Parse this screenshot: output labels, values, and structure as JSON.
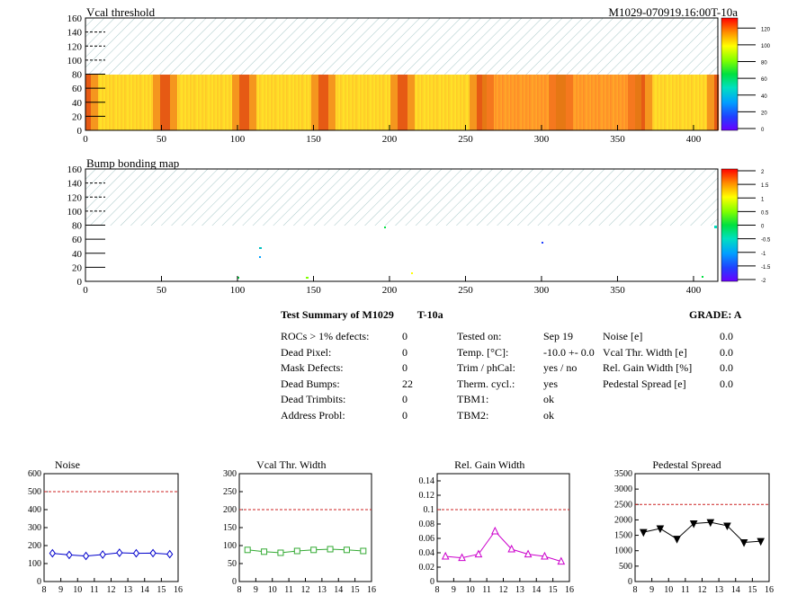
{
  "header": {
    "threshold_title": "Vcal threshold",
    "module_id": "M1029-070919.16:00T-10a",
    "bump_title": "Bump bonding map"
  },
  "maps": {
    "x_ticks": [
      "0",
      "50",
      "100",
      "150",
      "200",
      "250",
      "300",
      "350",
      "400"
    ],
    "y_ticks": [
      "0",
      "20",
      "40",
      "60",
      "80",
      "100",
      "120",
      "140",
      "160"
    ],
    "threshold_palette_ticks": [
      "0",
      "20",
      "40",
      "60",
      "80",
      "100",
      "120"
    ],
    "bump_palette_ticks": [
      "-2",
      "-1.5",
      "-1",
      "-0.5",
      "0",
      "0.5",
      "1",
      "1.5",
      "2"
    ]
  },
  "summary": {
    "title": "Test Summary of M1029",
    "temp_tag": "T-10a",
    "grade_label": "GRADE:",
    "grade": "A",
    "left": [
      {
        "label": "ROCs > 1% defects:",
        "value": "0"
      },
      {
        "label": "Dead Pixel:",
        "value": "0"
      },
      {
        "label": "Mask Defects:",
        "value": "0"
      },
      {
        "label": "Dead Bumps:",
        "value": "22"
      },
      {
        "label": "Dead Trimbits:",
        "value": "0"
      },
      {
        "label": "Address Probl:",
        "value": "0"
      }
    ],
    "middle": [
      {
        "label": "Tested on:",
        "value": "Sep 19"
      },
      {
        "label": "Temp. [°C]:",
        "value": "-10.0 +- 0.0"
      },
      {
        "label": "Trim / phCal:",
        "value": "yes / no"
      },
      {
        "label": "Therm. cycl.:",
        "value": "yes"
      },
      {
        "label": "TBM1:",
        "value": "ok"
      },
      {
        "label": "TBM2:",
        "value": "ok"
      }
    ],
    "right": [
      {
        "label": "Noise [e]",
        "value": "0.0"
      },
      {
        "label": "Vcal Thr. Width [e]",
        "value": "0.0"
      },
      {
        "label": "Rel. Gain Width [%]",
        "value": "0.0"
      },
      {
        "label": "Pedestal Spread [e]",
        "value": "0.0"
      }
    ]
  },
  "chart_data": [
    {
      "type": "line",
      "title": "Noise",
      "x": [
        8.5,
        9.5,
        10.5,
        11.5,
        12.5,
        13.5,
        14.5,
        15.5
      ],
      "values": [
        157,
        148,
        142,
        150,
        160,
        157,
        158,
        152
      ],
      "xlim": [
        8,
        16
      ],
      "ylim": [
        0,
        600
      ],
      "x_ticks": [
        8,
        9,
        10,
        11,
        12,
        13,
        14,
        15,
        16
      ],
      "y_ticks": [
        0,
        100,
        200,
        300,
        400,
        500,
        600
      ],
      "threshold": 500,
      "color": "#0000cc",
      "marker": "diamond"
    },
    {
      "type": "line",
      "title": "Vcal Thr. Width",
      "x": [
        8.5,
        9.5,
        10.5,
        11.5,
        12.5,
        13.5,
        14.5,
        15.5
      ],
      "values": [
        88,
        83,
        80,
        85,
        88,
        90,
        88,
        85
      ],
      "xlim": [
        8,
        16
      ],
      "ylim": [
        0,
        300
      ],
      "x_ticks": [
        8,
        9,
        10,
        11,
        12,
        13,
        14,
        15,
        16
      ],
      "y_ticks": [
        0,
        50,
        100,
        150,
        200,
        250,
        300
      ],
      "threshold": 200,
      "color": "#33aa33",
      "marker": "square"
    },
    {
      "type": "line",
      "title": "Rel. Gain Width",
      "x": [
        8.5,
        9.5,
        10.5,
        11.5,
        12.5,
        13.5,
        14.5,
        15.5
      ],
      "values": [
        0.035,
        0.033,
        0.038,
        0.07,
        0.045,
        0.038,
        0.035,
        0.028
      ],
      "xlim": [
        8,
        16
      ],
      "ylim": [
        0,
        0.15
      ],
      "x_ticks": [
        8,
        9,
        10,
        11,
        12,
        13,
        14,
        15,
        16
      ],
      "y_ticks": [
        0,
        0.02,
        0.04,
        0.06,
        0.08,
        0.1,
        0.12,
        0.14
      ],
      "threshold": 0.1,
      "color": "#cc00cc",
      "marker": "triangle"
    },
    {
      "type": "line",
      "title": "Pedestal Spread",
      "x": [
        8.5,
        9.5,
        10.5,
        11.5,
        12.5,
        13.5,
        14.5,
        15.5
      ],
      "values": [
        1600,
        1720,
        1380,
        1880,
        1920,
        1810,
        1270,
        1310
      ],
      "xlim": [
        8,
        16
      ],
      "ylim": [
        0,
        3500
      ],
      "x_ticks": [
        8,
        9,
        10,
        11,
        12,
        13,
        14,
        15,
        16
      ],
      "y_ticks": [
        0,
        500,
        1000,
        1500,
        2000,
        2500,
        3000,
        3500
      ],
      "threshold": 2500,
      "color": "#000000",
      "marker": "triangle-down"
    }
  ]
}
